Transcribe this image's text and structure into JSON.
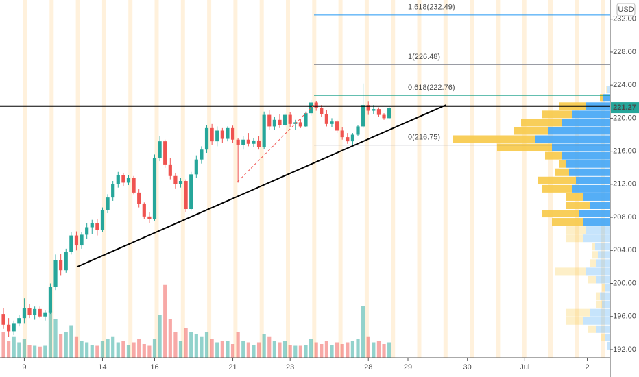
{
  "chart_data": {
    "type": "candlestick",
    "currency": "USD",
    "last_price": 221.27,
    "xlim": [
      -0.66,
      116.4
    ],
    "ylim": [
      191.0,
      234.3
    ],
    "yticks": [
      {
        "value": 192,
        "label": "192.00"
      },
      {
        "value": 196,
        "label": "196.00"
      },
      {
        "value": 200,
        "label": "200.00"
      },
      {
        "value": 204,
        "label": "204.00"
      },
      {
        "value": 208,
        "label": "208.00"
      },
      {
        "value": 212,
        "label": "212.00"
      },
      {
        "value": 216,
        "label": "216.00"
      },
      {
        "value": 220,
        "label": "220.00"
      },
      {
        "value": 224,
        "label": "224.00"
      },
      {
        "value": 228,
        "label": "228.00"
      },
      {
        "value": 232,
        "label": "232.00"
      }
    ],
    "xticks": [
      {
        "value": 4,
        "label": "9"
      },
      {
        "value": 19,
        "label": "14"
      },
      {
        "value": 29,
        "label": "16"
      },
      {
        "value": 44,
        "label": "21"
      },
      {
        "value": 55,
        "label": "23"
      },
      {
        "value": 70,
        "label": "28"
      },
      {
        "value": 77.6,
        "label": "29"
      },
      {
        "value": 89,
        "label": "30"
      },
      {
        "value": 100,
        "label": "Jul"
      },
      {
        "value": 112,
        "label": "2"
      }
    ],
    "up_color": "#26a69a",
    "down_color": "#ef5350",
    "ohlc": [
      [
        196.3,
        197.0,
        194.5,
        195.0
      ],
      [
        195.0,
        195.8,
        193.5,
        194.2
      ],
      [
        194.2,
        195.5,
        193.8,
        195.2
      ],
      [
        195.2,
        196.2,
        194.8,
        195.8
      ],
      [
        195.8,
        198.2,
        195.2,
        197.0
      ],
      [
        197.0,
        197.5,
        195.8,
        196.2
      ],
      [
        196.2,
        197.2,
        195.6,
        196.9
      ],
      [
        196.9,
        197.2,
        195.8,
        196.0
      ],
      [
        196.0,
        196.8,
        195.5,
        196.5
      ],
      [
        196.5,
        200.0,
        196.3,
        199.6
      ],
      [
        199.6,
        203.5,
        199.2,
        202.8
      ],
      [
        202.8,
        203.6,
        201.0,
        201.6
      ],
      [
        201.6,
        204.2,
        201.3,
        203.8
      ],
      [
        203.8,
        206.2,
        203.5,
        205.8
      ],
      [
        205.8,
        206.3,
        204.0,
        204.6
      ],
      [
        204.6,
        206.2,
        204.2,
        205.9
      ],
      [
        205.9,
        207.3,
        205.4,
        206.8
      ],
      [
        206.8,
        207.7,
        206.0,
        207.3
      ],
      [
        207.3,
        207.8,
        205.8,
        206.5
      ],
      [
        206.5,
        209.2,
        206.2,
        208.9
      ],
      [
        208.9,
        210.8,
        208.5,
        210.4
      ],
      [
        210.4,
        212.4,
        210.0,
        212.0
      ],
      [
        212.0,
        213.5,
        211.6,
        213.1
      ],
      [
        213.1,
        213.4,
        211.8,
        212.2
      ],
      [
        212.2,
        213.1,
        211.9,
        212.8
      ],
      [
        212.8,
        213.0,
        210.8,
        211.0
      ],
      [
        211.0,
        211.4,
        209.2,
        209.6
      ],
      [
        209.6,
        209.8,
        207.8,
        208.1
      ],
      [
        208.1,
        208.6,
        207.3,
        207.8
      ],
      [
        207.8,
        215.6,
        207.6,
        215.2
      ],
      [
        215.2,
        217.8,
        214.8,
        217.2
      ],
      [
        217.2,
        217.4,
        214.0,
        214.4
      ],
      [
        214.4,
        215.2,
        212.6,
        213.0
      ],
      [
        213.0,
        213.4,
        211.5,
        212.0
      ],
      [
        212.0,
        212.8,
        211.6,
        212.4
      ],
      [
        212.4,
        212.6,
        208.6,
        209.0
      ],
      [
        209.0,
        213.5,
        208.8,
        213.2
      ],
      [
        213.2,
        215.5,
        212.8,
        215.0
      ],
      [
        215.0,
        216.6,
        214.5,
        216.2
      ],
      [
        216.2,
        219.2,
        215.8,
        218.8
      ],
      [
        218.8,
        219.3,
        216.8,
        217.2
      ],
      [
        217.2,
        219.0,
        216.6,
        218.5
      ],
      [
        218.5,
        218.8,
        217.0,
        217.5
      ],
      [
        217.5,
        219.0,
        217.2,
        218.8
      ],
      [
        218.8,
        219.1,
        217.0,
        217.4
      ],
      [
        217.4,
        217.6,
        212.2,
        216.8
      ],
      [
        216.8,
        217.8,
        216.2,
        217.4
      ],
      [
        217.4,
        218.2,
        216.6,
        216.9
      ],
      [
        216.9,
        217.6,
        216.5,
        217.3
      ],
      [
        217.3,
        217.8,
        216.2,
        216.5
      ],
      [
        216.5,
        220.8,
        216.3,
        220.4
      ],
      [
        220.4,
        221.0,
        218.6,
        219.0
      ],
      [
        219.0,
        220.2,
        218.6,
        219.8
      ],
      [
        219.8,
        220.5,
        218.8,
        219.2
      ],
      [
        219.2,
        220.6,
        219.0,
        220.4
      ],
      [
        220.4,
        220.7,
        218.9,
        219.3
      ],
      [
        219.3,
        219.8,
        218.6,
        219.5
      ],
      [
        219.5,
        219.9,
        218.8,
        219.0
      ],
      [
        219.0,
        220.8,
        218.9,
        220.6
      ],
      [
        220.6,
        222.2,
        220.3,
        221.9
      ],
      [
        221.9,
        222.1,
        220.9,
        221.2
      ],
      [
        221.2,
        221.6,
        220.2,
        220.5
      ],
      [
        220.5,
        221.0,
        219.0,
        219.3
      ],
      [
        219.3,
        220.0,
        218.9,
        219.6
      ],
      [
        219.6,
        219.8,
        218.2,
        218.5
      ],
      [
        218.5,
        218.9,
        217.4,
        217.7
      ],
      [
        217.7,
        218.2,
        216.9,
        217.2
      ],
      [
        217.2,
        218.2,
        216.8,
        218.0
      ],
      [
        218.0,
        219.2,
        217.8,
        219.0
      ],
      [
        219.0,
        224.2,
        218.8,
        221.6
      ],
      [
        221.6,
        222.0,
        220.4,
        220.9
      ],
      [
        220.9,
        221.6,
        220.5,
        221.1
      ],
      [
        221.1,
        221.3,
        220.2,
        220.4
      ],
      [
        220.4,
        220.6,
        219.8,
        220.0
      ],
      [
        220.0,
        221.4,
        219.9,
        221.27
      ]
    ],
    "volume": [
      30,
      20,
      25,
      18,
      22,
      15,
      14,
      13,
      14,
      55,
      45,
      28,
      30,
      38,
      25,
      20,
      18,
      15,
      14,
      20,
      22,
      25,
      18,
      20,
      15,
      18,
      22,
      16,
      14,
      22,
      50,
      85,
      45,
      30,
      20,
      35,
      30,
      28,
      25,
      30,
      22,
      18,
      20,
      20,
      16,
      30,
      20,
      18,
      15,
      18,
      28,
      25,
      20,
      18,
      20,
      15,
      14,
      14,
      15,
      22,
      18,
      16,
      20,
      15,
      18,
      16,
      18,
      20,
      22,
      60,
      25,
      18,
      20,
      16,
      18
    ],
    "fib_levels": [
      {
        "label": "1.618(232.49)",
        "value": 232.49,
        "color": "#2196f3"
      },
      {
        "label": "1(226.48)",
        "value": 226.48,
        "color": "#787b86"
      },
      {
        "label": "0.618(222.76)",
        "value": 222.76,
        "color": "#089981"
      },
      {
        "label": "0(216.75)",
        "value": 216.75,
        "color": "#787b86"
      }
    ],
    "horizontal_line": 221.46,
    "trend_lines": [
      {
        "x": [
          14.1,
          84.9
        ],
        "y": [
          202.0,
          221.6
        ],
        "color": "#000000",
        "dashed": false
      },
      {
        "x": [
          44.9,
          60.2
        ],
        "y": [
          212.3,
          222.0
        ],
        "color": "#ef5350",
        "dashed": true
      }
    ],
    "volume_profile": {
      "bins": [
        192,
        193,
        194,
        195,
        196,
        197,
        198,
        199,
        200,
        201,
        202,
        203,
        204,
        205,
        206,
        207,
        208,
        209,
        210,
        211,
        212,
        213,
        214,
        215,
        216,
        217,
        218,
        219,
        220,
        221,
        222,
        223,
        224
      ],
      "up": [
        5,
        8,
        20,
        40,
        30,
        12,
        15,
        8,
        20,
        35,
        20,
        18,
        22,
        40,
        35,
        40,
        45,
        30,
        40,
        55,
        50,
        60,
        65,
        70,
        85,
        110,
        90,
        70,
        55,
        35,
        10,
        4
      ],
      "down": [
        0,
        5,
        12,
        25,
        35,
        8,
        5,
        4,
        12,
        45,
        10,
        8,
        5,
        25,
        30,
        45,
        55,
        35,
        25,
        45,
        55,
        20,
        10,
        25,
        80,
        120,
        50,
        60,
        45,
        40,
        5,
        2
      ],
      "up_color": "#42a5f5",
      "down_color": "#f7c948",
      "value_area": [
        207,
        223
      ]
    }
  }
}
